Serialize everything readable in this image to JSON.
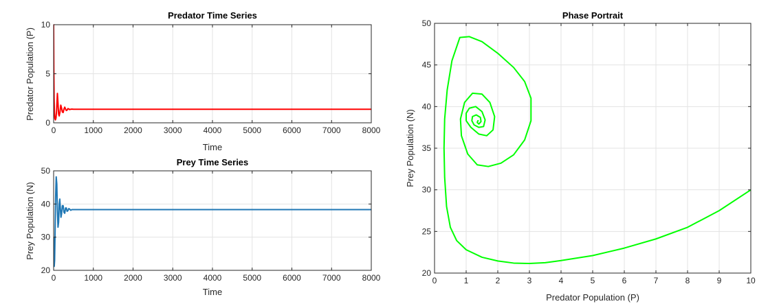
{
  "chart_data": [
    {
      "id": "predator",
      "type": "line",
      "title": "Predator Time Series",
      "xlabel": "Time",
      "ylabel": "Predator Population (P)",
      "xlim": [
        0,
        8000
      ],
      "ylim": [
        0,
        10
      ],
      "xticks": [
        0,
        1000,
        2000,
        3000,
        4000,
        5000,
        6000,
        7000,
        8000
      ],
      "yticks": [
        0,
        5,
        10
      ],
      "grid": true,
      "series": [
        {
          "color": "#ff0000",
          "x": [
            0,
            5,
            12,
            20,
            30,
            45,
            60,
            75,
            95,
            110,
            125,
            140,
            160,
            180,
            200,
            220,
            240,
            260,
            280,
            300,
            320,
            340,
            360,
            380,
            400,
            430,
            460,
            500,
            600,
            800,
            1000,
            2000,
            3000,
            4000,
            5000,
            6000,
            7000,
            8000
          ],
          "y": [
            10,
            5.5,
            2.5,
            1.1,
            0.45,
            0.3,
            0.5,
            1.3,
            3.0,
            2.0,
            0.9,
            0.7,
            1.1,
            1.8,
            1.5,
            1.1,
            1.05,
            1.4,
            1.6,
            1.4,
            1.25,
            1.3,
            1.45,
            1.42,
            1.35,
            1.38,
            1.4,
            1.38,
            1.38,
            1.38,
            1.38,
            1.38,
            1.38,
            1.38,
            1.38,
            1.38,
            1.38,
            1.38
          ]
        }
      ]
    },
    {
      "id": "prey",
      "type": "line",
      "title": "Prey Time Series",
      "xlabel": "Time",
      "ylabel": "Prey Population (N)",
      "xlim": [
        0,
        8000
      ],
      "ylim": [
        20,
        50
      ],
      "xticks": [
        0,
        1000,
        2000,
        3000,
        4000,
        5000,
        6000,
        7000,
        8000
      ],
      "yticks": [
        20,
        30,
        40,
        50
      ],
      "grid": true,
      "series": [
        {
          "color": "#1f77b4",
          "x": [
            0,
            8,
            15,
            25,
            35,
            50,
            65,
            80,
            95,
            110,
            125,
            140,
            155,
            170,
            185,
            200,
            220,
            240,
            260,
            280,
            300,
            320,
            340,
            360,
            380,
            400,
            430,
            460,
            500,
            600,
            800,
            1000,
            2000,
            3000,
            4000,
            5000,
            6000,
            7000,
            8000
          ],
          "y": [
            30,
            22,
            21.2,
            23,
            30,
            42,
            48.2,
            46,
            38,
            33,
            34.5,
            40,
            41.5,
            38.5,
            36,
            37,
            39.5,
            39.5,
            37.5,
            37.2,
            38.8,
            38.8,
            37.8,
            38,
            38.6,
            38.5,
            38.1,
            38.3,
            38.3,
            38.3,
            38.3,
            38.3,
            38.3,
            38.3,
            38.3,
            38.3,
            38.3,
            38.3,
            38.3
          ]
        }
      ]
    },
    {
      "id": "phase",
      "type": "line",
      "title": "Phase Portrait",
      "xlabel": "Predator Population (P)",
      "ylabel": "Prey Population (N)",
      "xlim": [
        0,
        10
      ],
      "ylim": [
        20,
        50
      ],
      "xticks": [
        0,
        1,
        2,
        3,
        4,
        5,
        6,
        7,
        8,
        9,
        10
      ],
      "yticks": [
        20,
        25,
        30,
        35,
        40,
        45,
        50
      ],
      "grid": true,
      "series": [
        {
          "color": "#00ff00",
          "x": [
            10,
            9,
            8,
            7,
            6,
            5,
            4,
            3.5,
            3,
            2.5,
            2,
            1.5,
            1,
            0.7,
            0.5,
            0.38,
            0.32,
            0.3,
            0.32,
            0.4,
            0.55,
            0.8,
            1.1,
            1.5,
            2,
            2.5,
            2.85,
            3.05,
            3.05,
            2.85,
            2.5,
            2.1,
            1.7,
            1.35,
            1.05,
            0.85,
            0.82,
            0.95,
            1.2,
            1.5,
            1.75,
            1.9,
            1.85,
            1.65,
            1.4,
            1.15,
            1.0,
            1.0,
            1.1,
            1.3,
            1.5,
            1.6,
            1.55,
            1.4,
            1.25,
            1.18,
            1.2,
            1.32,
            1.45,
            1.47,
            1.4,
            1.35,
            1.37,
            1.38
          ],
          "y": [
            30,
            27.5,
            25.5,
            24.1,
            23,
            22.1,
            21.5,
            21.25,
            21.15,
            21.2,
            21.45,
            21.9,
            22.8,
            23.9,
            25.5,
            28,
            31.5,
            35,
            38.5,
            42,
            45.5,
            48.3,
            48.4,
            47.8,
            46.4,
            44.7,
            43,
            41,
            38.3,
            36,
            34.2,
            33.2,
            32.8,
            33,
            34.3,
            36.5,
            38.5,
            40.5,
            41.6,
            41.5,
            40.5,
            38.8,
            37.2,
            36.5,
            36.7,
            37.5,
            38.3,
            39.2,
            39.8,
            40.0,
            39.4,
            38.4,
            37.6,
            37.5,
            37.8,
            38.3,
            38.8,
            39.0,
            38.7,
            38.2,
            37.9,
            38.1,
            38.3,
            38.3
          ]
        }
      ]
    }
  ]
}
